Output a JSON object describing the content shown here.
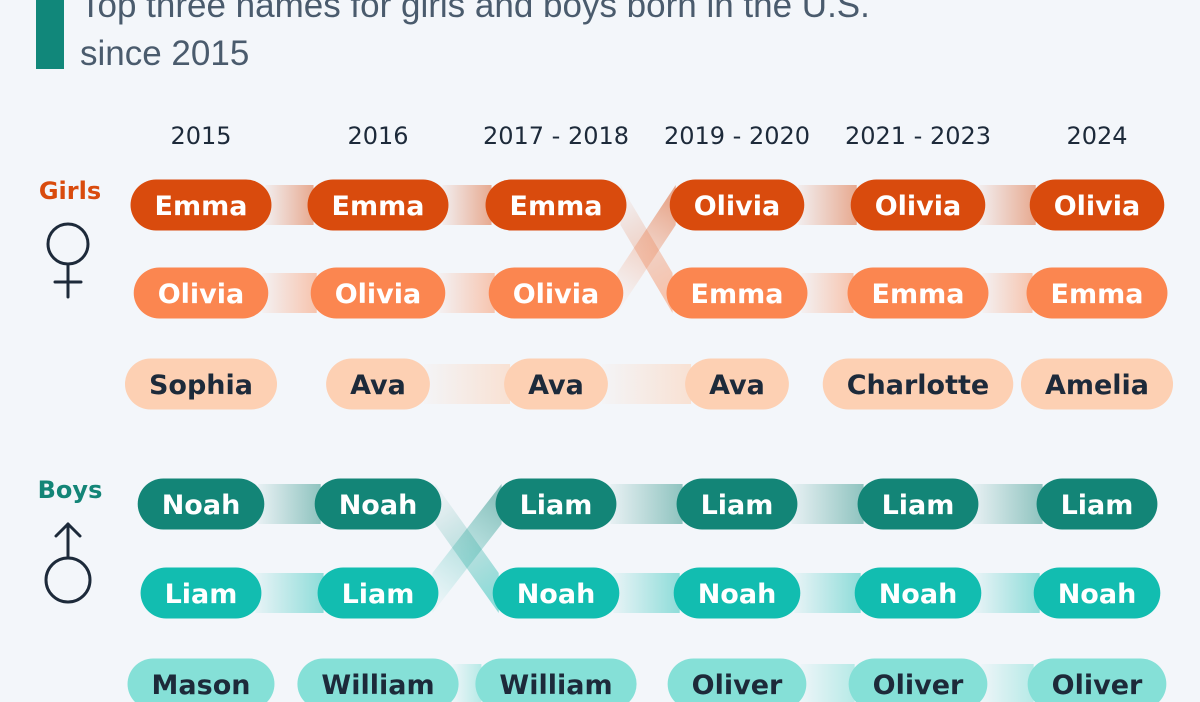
{
  "title_lines": [
    "Top three names for girls and boys born in the U.S.",
    "since 2015"
  ],
  "colors": {
    "girl_first": "#d94b0d",
    "girl_second": "#fb8650",
    "girl_third": "#fdd0b3",
    "boy_first": "#138577",
    "boy_second": "#12bdb0",
    "boy_third": "#85e0d7",
    "girl_label": "#d94b0d",
    "boy_label": "#138577",
    "text_light": "#ffffff",
    "text_dark": "#1d2a3a"
  },
  "icons": {
    "girls": "female-symbol-icon",
    "boys": "male-symbol-icon"
  },
  "chart_data": {
    "type": "table",
    "periods": [
      "2015",
      "2016",
      "2017 - 2018",
      "2019 - 2020",
      "2021 - 2023",
      "2024"
    ],
    "groups": [
      {
        "label": "Girls",
        "rankings": [
          [
            "Emma",
            "Olivia",
            "Sophia"
          ],
          [
            "Emma",
            "Olivia",
            "Ava"
          ],
          [
            "Emma",
            "Olivia",
            "Ava"
          ],
          [
            "Olivia",
            "Emma",
            "Ava"
          ],
          [
            "Olivia",
            "Emma",
            "Charlotte"
          ],
          [
            "Olivia",
            "Emma",
            "Amelia"
          ]
        ]
      },
      {
        "label": "Boys",
        "rankings": [
          [
            "Noah",
            "Liam",
            "Mason"
          ],
          [
            "Noah",
            "Liam",
            "William"
          ],
          [
            "Liam",
            "Noah",
            "William"
          ],
          [
            "Liam",
            "Noah",
            "Oliver"
          ],
          [
            "Liam",
            "Noah",
            "Oliver"
          ],
          [
            "Liam",
            "Noah",
            "Oliver"
          ]
        ]
      }
    ]
  }
}
